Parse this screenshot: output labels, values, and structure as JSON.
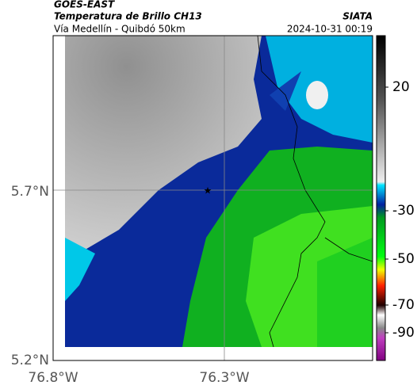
{
  "header": {
    "satellite": "GOES-EAST",
    "product": "Temperatura de Brillo CH13",
    "source": "SIATA",
    "route": "Vía Medellín - Quibdó 50km",
    "timestamp": "2024-10-31 00:19"
  },
  "map": {
    "lat_labels": [
      "5.7°N",
      "5.2°N"
    ],
    "lon_labels": [
      "76.8°W",
      "76.3°W"
    ]
  },
  "colorbar": {
    "ticks": [
      20,
      -30,
      -50,
      -70,
      -90
    ]
  }
}
